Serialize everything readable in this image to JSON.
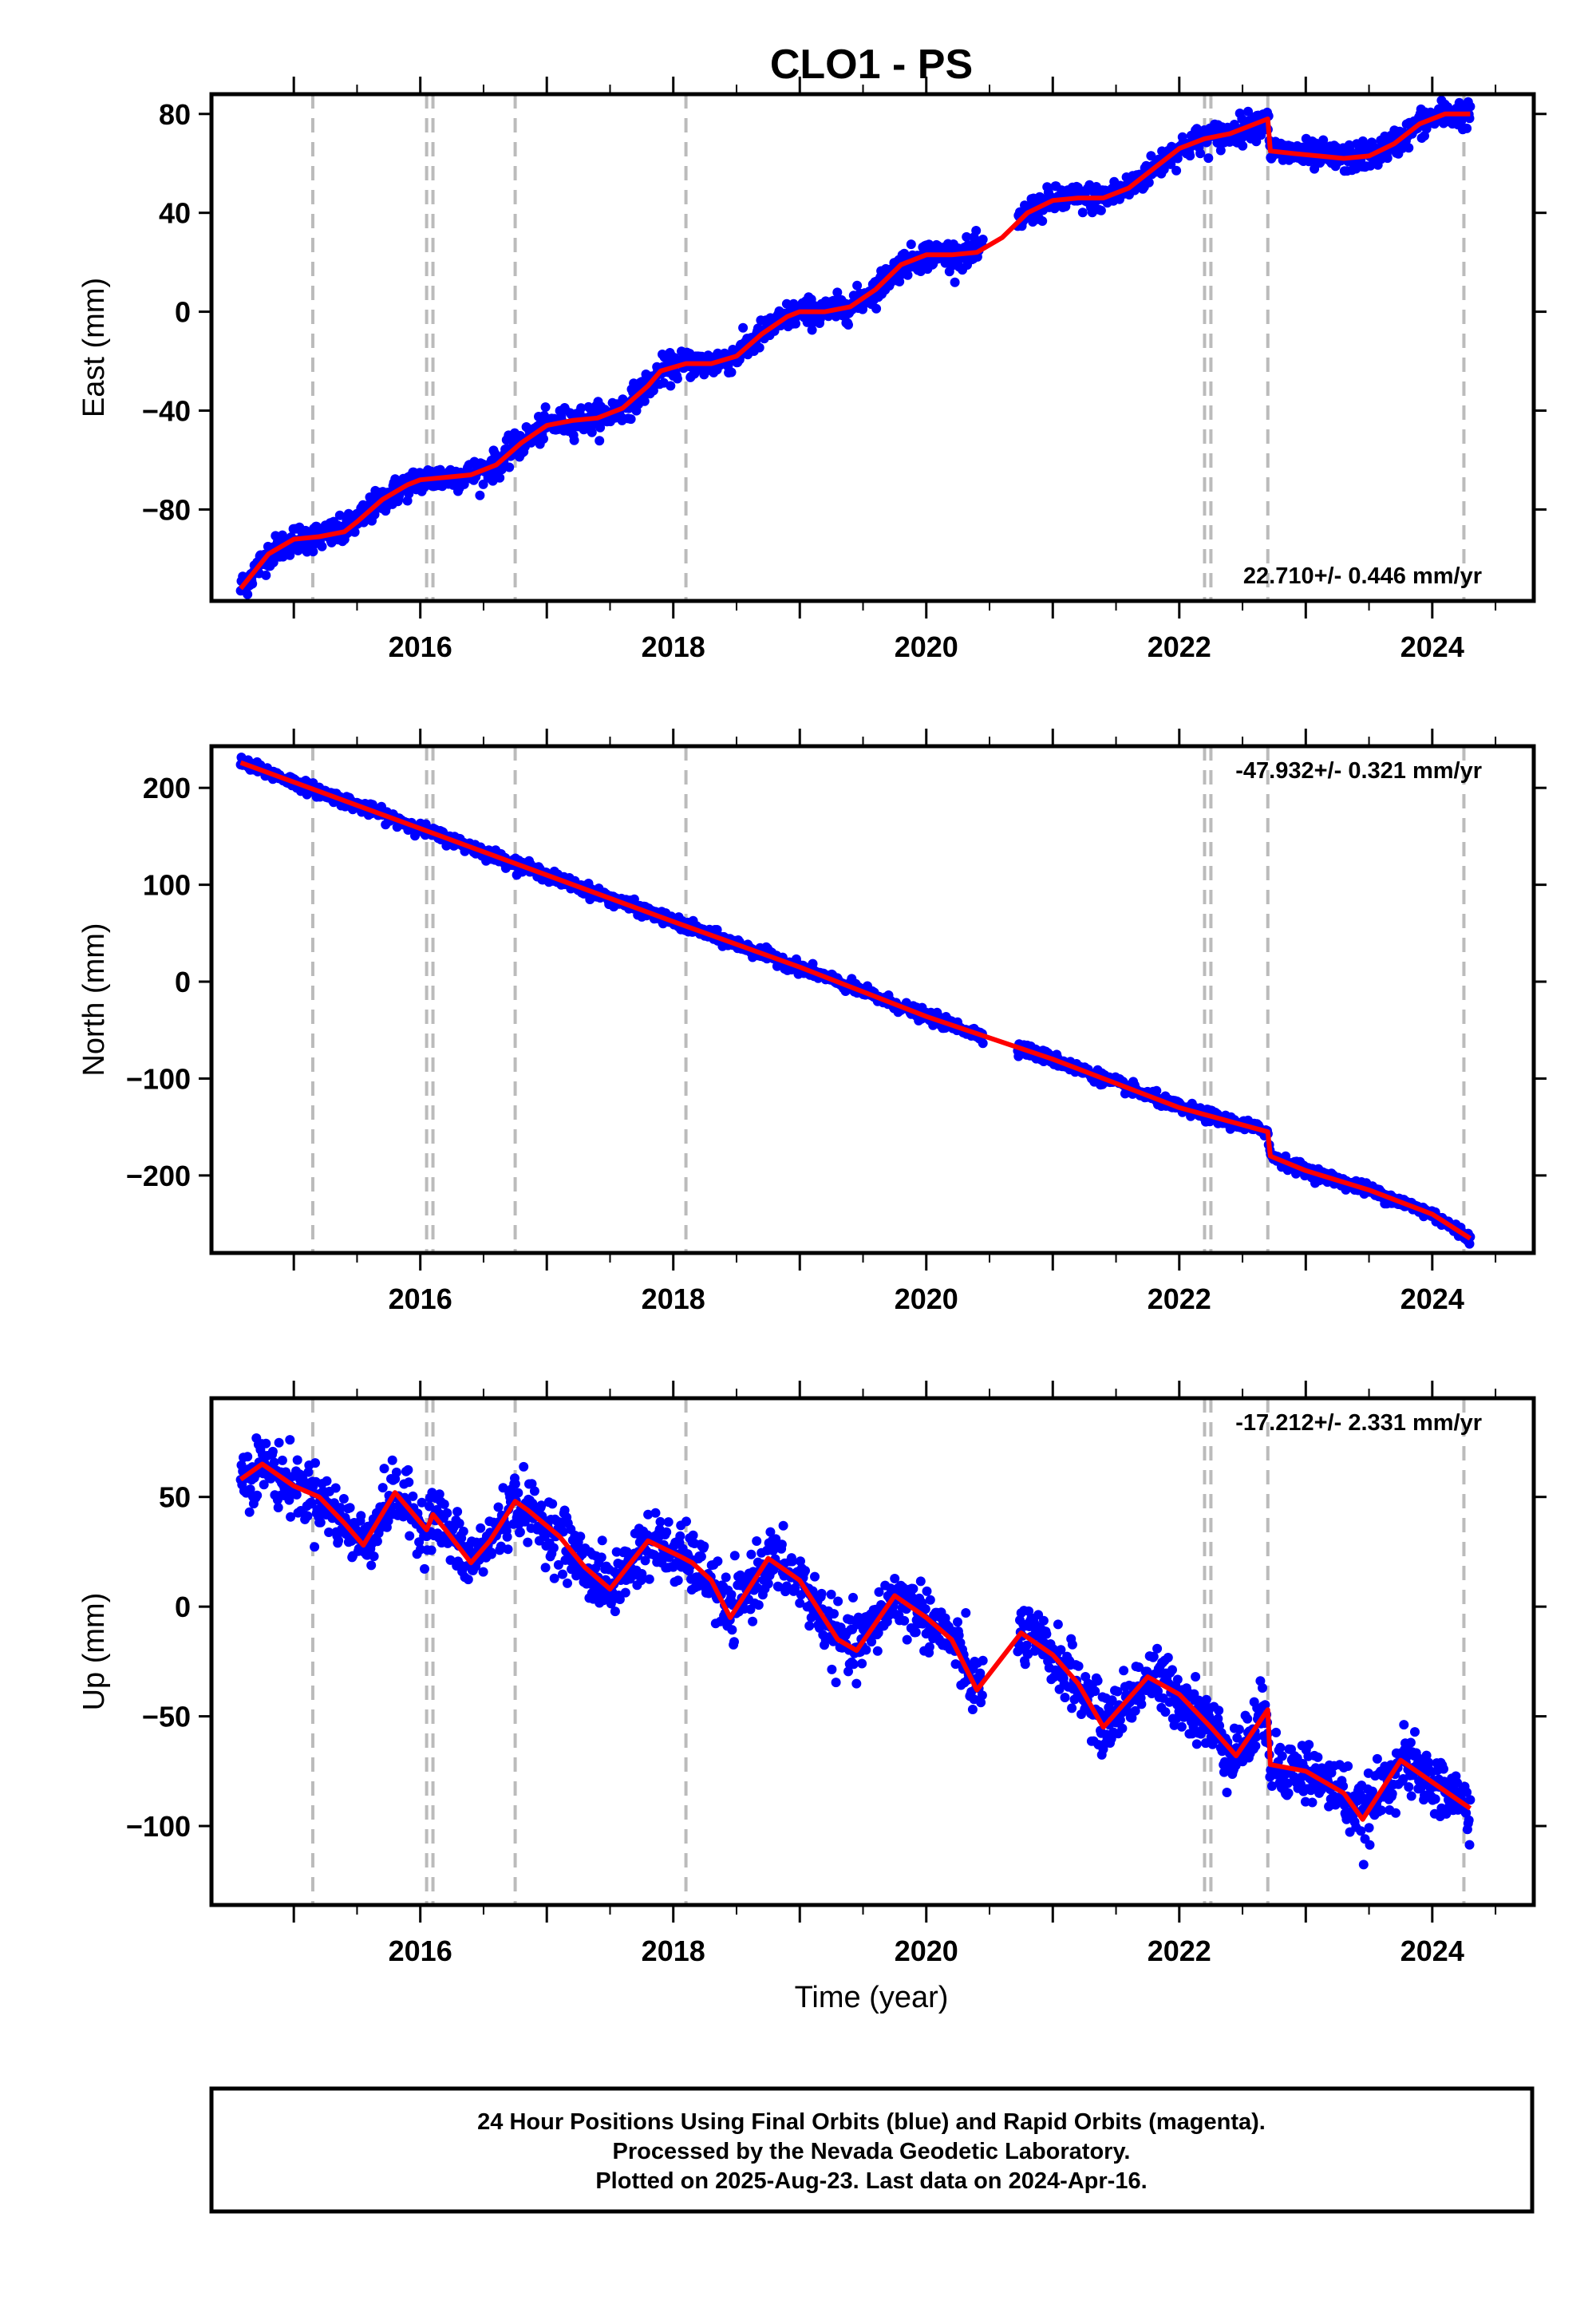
{
  "title": "CLO1 - PS",
  "footer": {
    "line1": "24 Hour Positions Using Final Orbits (blue) and Rapid Orbits (magenta).",
    "line2": "Processed by the Nevada Geodetic Laboratory.",
    "line3": "Plotted on 2025-Aug-23. Last data on 2024-Apr-16."
  },
  "colors": {
    "data": "#0000ff",
    "model": "#ff0000",
    "event_lines": "#bbbbbb"
  },
  "chart_data": [
    {
      "type": "scatter",
      "component": "East",
      "ylabel": "East (mm)",
      "xlabel": "",
      "xlim": [
        2014.45,
        2024.55
      ],
      "ylim": [
        -117,
        88
      ],
      "xticks": [
        2016,
        2018,
        2020,
        2022,
        2024
      ],
      "yticks": [
        80,
        40,
        0,
        -40,
        -80
      ],
      "rate_label": "22.710+/- 0.446 mm/yr",
      "rate_position": "bottom-right",
      "event_lines": [
        2015.15,
        2016.05,
        2016.1,
        2016.75,
        2018.1,
        2022.2,
        2022.25,
        2022.7,
        2024.25
      ],
      "model": {
        "x": [
          2014.58,
          2014.8,
          2015.0,
          2015.2,
          2015.4,
          2015.5,
          2015.7,
          2015.9,
          2016.0,
          2016.2,
          2016.4,
          2016.6,
          2016.8,
          2017.0,
          2017.2,
          2017.4,
          2017.6,
          2017.8,
          2017.9,
          2018.1,
          2018.3,
          2018.5,
          2018.7,
          2018.9,
          2019.0,
          2019.2,
          2019.4,
          2019.6,
          2019.8,
          2020.0,
          2020.2,
          2020.4,
          2020.6,
          2020.8,
          2021.0,
          2021.2,
          2021.4,
          2021.6,
          2021.8,
          2022.0,
          2022.2,
          2022.4,
          2022.7,
          2022.72,
          2022.9,
          2023.1,
          2023.3,
          2023.5,
          2023.7,
          2023.9,
          2024.1,
          2024.3
        ],
        "y": [
          -112,
          -98,
          -92,
          -91,
          -89,
          -85,
          -76,
          -70,
          -68,
          -67,
          -66,
          -62,
          -53,
          -46,
          -44,
          -43,
          -39,
          -30,
          -24,
          -21,
          -21,
          -18,
          -9,
          -2,
          0,
          0,
          2,
          9,
          19,
          23,
          23,
          24,
          30,
          40,
          45,
          46,
          46,
          50,
          58,
          66,
          70,
          72,
          78,
          65,
          64,
          63,
          62,
          63,
          68,
          76,
          80,
          80
        ]
      },
      "scatter_sd": 2.8
    },
    {
      "type": "scatter",
      "component": "North",
      "ylabel": "North (mm)",
      "xlabel": "",
      "xlim": [
        2014.45,
        2024.55
      ],
      "ylim": [
        -280,
        243
      ],
      "xticks": [
        2016,
        2018,
        2020,
        2022,
        2024
      ],
      "yticks": [
        200,
        100,
        0,
        -100,
        -200
      ],
      "rate_label": "-47.932+/- 0.321 mm/yr",
      "rate_position": "top-right",
      "event_lines": [
        2015.15,
        2016.05,
        2016.1,
        2016.75,
        2018.1,
        2022.2,
        2022.25,
        2022.7,
        2024.25
      ],
      "model": {
        "x": [
          2014.58,
          2016.0,
          2017.0,
          2018.0,
          2019.0,
          2020.0,
          2020.5,
          2021.0,
          2022.0,
          2022.7,
          2022.72,
          2023.0,
          2023.5,
          2024.0,
          2024.3
        ],
        "y": [
          226,
          158,
          110,
          62,
          15,
          -36,
          -58,
          -80,
          -130,
          -155,
          -180,
          -195,
          -215,
          -240,
          -265
        ]
      },
      "scatter_sd": 3
    },
    {
      "type": "scatter",
      "component": "Up",
      "ylabel": "Up (mm)",
      "xlabel": "Time (year)",
      "xlim": [
        2014.45,
        2024.55
      ],
      "ylim": [
        -136,
        95
      ],
      "xticks": [
        2016,
        2018,
        2020,
        2022,
        2024
      ],
      "yticks": [
        50,
        0,
        -50,
        -100
      ],
      "rate_label": "-17.212+/- 2.331 mm/yr",
      "rate_position": "top-right",
      "event_lines": [
        2015.15,
        2016.05,
        2016.1,
        2016.75,
        2018.1,
        2022.2,
        2022.25,
        2022.7,
        2024.25
      ],
      "model": {
        "x": [
          2014.58,
          2014.75,
          2015.0,
          2015.2,
          2015.4,
          2015.55,
          2015.8,
          2016.05,
          2016.1,
          2016.2,
          2016.4,
          2016.55,
          2016.75,
          2016.85,
          2017.1,
          2017.3,
          2017.5,
          2017.8,
          2018.05,
          2018.15,
          2018.3,
          2018.45,
          2018.75,
          2019.0,
          2019.3,
          2019.45,
          2019.75,
          2020.0,
          2020.2,
          2020.4,
          2020.75,
          2021.0,
          2021.2,
          2021.4,
          2021.75,
          2022.0,
          2022.25,
          2022.45,
          2022.7,
          2022.72,
          2023.0,
          2023.3,
          2023.45,
          2023.75,
          2024.0,
          2024.3
        ],
        "y": [
          58,
          65,
          55,
          50,
          38,
          28,
          52,
          35,
          42,
          35,
          20,
          30,
          48,
          44,
          32,
          18,
          8,
          30,
          23,
          20,
          12,
          -5,
          22,
          12,
          -15,
          -20,
          5,
          -5,
          -15,
          -38,
          -12,
          -22,
          -35,
          -55,
          -32,
          -40,
          -55,
          -68,
          -47,
          -72,
          -75,
          -85,
          -97,
          -70,
          -80,
          -92
        ]
      },
      "scatter_sd": 7
    }
  ]
}
